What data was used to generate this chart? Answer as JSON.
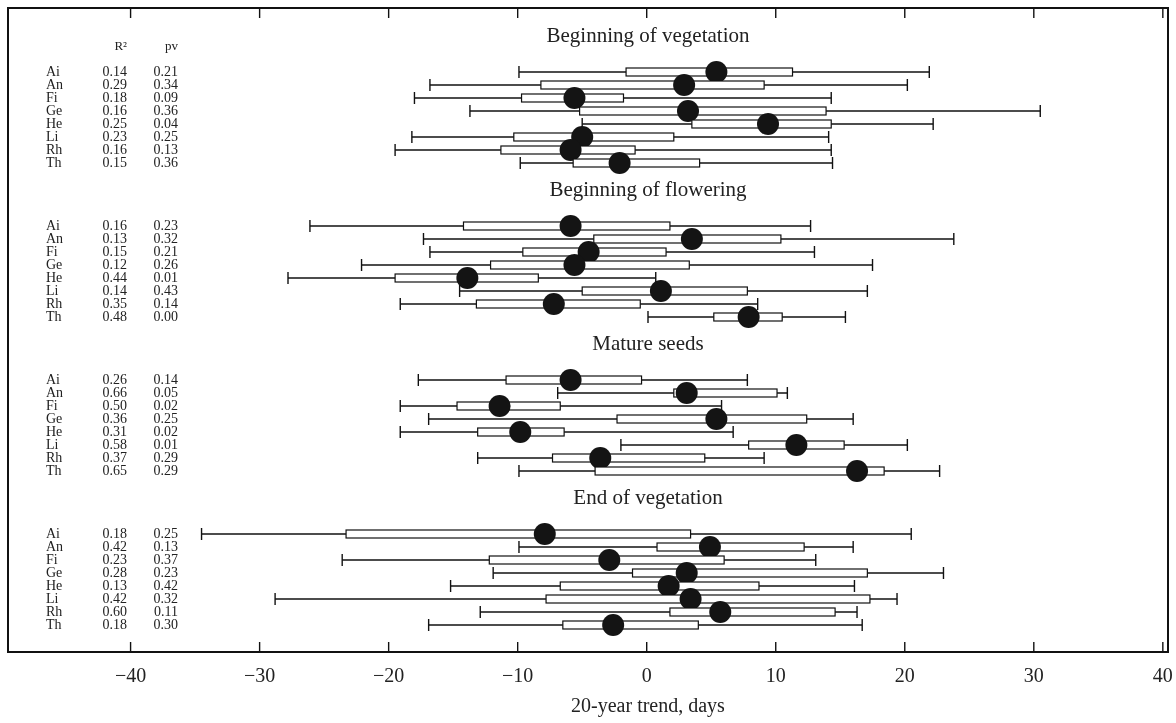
{
  "chart_data": [
    {
      "type": "box",
      "orientation": "horizontal",
      "title": "Beginning of vegetation",
      "categories": [
        "Ai",
        "An",
        "Fi",
        "Ge",
        "He",
        "Li",
        "Rh",
        "Th"
      ],
      "xlim": [
        -49.5,
        40.4
      ],
      "xticks": [
        -40,
        -30,
        -20,
        -10,
        0,
        10,
        20,
        30,
        40
      ],
      "tick_labels": "y",
      "annotations": [
        "R²",
        "pv",
        "0.14",
        "0.21",
        "0.29",
        "0.34",
        "0.18",
        "0.09",
        "0.16",
        "0.36",
        "0.25",
        "0.04",
        "0.23",
        "0.25",
        "0.16",
        "0.13",
        "0.15",
        "0.36"
      ],
      "boxes": [
        {
          "low": -9.9,
          "q1": -1.6,
          "median": 5.4,
          "q3": 11.3,
          "high": 21.9
        },
        {
          "low": -16.8,
          "q1": -8.2,
          "median": 2.9,
          "q3": 9.1,
          "high": 20.2
        },
        {
          "low": -18.0,
          "q1": -9.7,
          "median": -5.6,
          "q3": -1.8,
          "high": 14.3
        },
        {
          "low": -13.7,
          "q1": -5.2,
          "median": 3.2,
          "q3": 13.9,
          "high": 30.5
        },
        {
          "low": -5.0,
          "q1": 3.5,
          "median": 9.4,
          "q3": 14.3,
          "high": 22.2
        },
        {
          "low": -18.2,
          "q1": -10.3,
          "median": -5.0,
          "q3": 2.1,
          "high": 14.1
        },
        {
          "low": -19.5,
          "q1": -11.3,
          "median": -5.9,
          "q3": -0.9,
          "high": 14.3
        },
        {
          "low": -9.8,
          "q1": -5.7,
          "median": -2.1,
          "q3": 4.1,
          "high": 14.4
        }
      ]
    },
    {
      "type": "box",
      "orientation": "horizontal",
      "title": "Beginning of flowering",
      "categories": [
        "Ai",
        "An",
        "Fi",
        "Ge",
        "He",
        "Li",
        "Rh",
        "Th"
      ],
      "xlim": [
        -49.5,
        40.4
      ],
      "tick_labels": "y",
      "annotations": [
        "0.16",
        "0.23",
        "0.13",
        "0.32",
        "0.15",
        "0.21",
        "0.12",
        "0.26",
        "0.44",
        "0.01",
        "0.14",
        "0.43",
        "0.35",
        "0.14",
        "0.48",
        "0.00"
      ],
      "boxes": [
        {
          "low": -26.1,
          "q1": -14.2,
          "median": -5.9,
          "q3": 1.8,
          "high": 12.7
        },
        {
          "low": -17.3,
          "q1": -4.1,
          "median": 3.5,
          "q3": 10.4,
          "high": 23.8
        },
        {
          "low": -16.8,
          "q1": -9.6,
          "median": -4.5,
          "q3": 1.5,
          "high": 13.0
        },
        {
          "low": -22.1,
          "q1": -12.1,
          "median": -5.6,
          "q3": 3.3,
          "high": 17.5
        },
        {
          "low": -27.8,
          "q1": -19.5,
          "median": -13.9,
          "q3": -8.4,
          "high": 0.7
        },
        {
          "low": -14.5,
          "q1": -5.0,
          "median": 1.1,
          "q3": 7.8,
          "high": 17.1
        },
        {
          "low": -19.1,
          "q1": -13.2,
          "median": -7.2,
          "q3": -0.5,
          "high": 8.6
        },
        {
          "low": 0.1,
          "q1": 5.2,
          "median": 7.9,
          "q3": 10.5,
          "high": 15.4
        }
      ]
    },
    {
      "type": "box",
      "orientation": "horizontal",
      "title": "Mature seeds",
      "categories": [
        "Ai",
        "An",
        "Fi",
        "Ge",
        "He",
        "Li",
        "Rh",
        "Th"
      ],
      "xlim": [
        -49.5,
        40.4
      ],
      "tick_labels": "y",
      "annotations": [
        "0.26",
        "0.14",
        "0.66",
        "0.05",
        "0.50",
        "0.02",
        "0.36",
        "0.25",
        "0.31",
        "0.02",
        "0.58",
        "0.01",
        "0.37",
        "0.29",
        "0.65",
        "0.29"
      ],
      "boxes": [
        {
          "low": -17.7,
          "q1": -10.9,
          "median": -5.9,
          "q3": -0.4,
          "high": 7.8
        },
        {
          "low": -6.9,
          "q1": 2.1,
          "median": 3.1,
          "q3": 10.1,
          "high": 10.9
        },
        {
          "low": -19.1,
          "q1": -14.7,
          "median": -11.4,
          "q3": -6.7,
          "high": 5.8
        },
        {
          "low": -16.9,
          "q1": -2.3,
          "median": 5.4,
          "q3": 12.4,
          "high": 16.0
        },
        {
          "low": -19.1,
          "q1": -13.1,
          "median": -9.8,
          "q3": -6.4,
          "high": 6.7
        },
        {
          "low": -2.0,
          "q1": 7.9,
          "median": 11.6,
          "q3": 15.3,
          "high": 20.2
        },
        {
          "low": -13.1,
          "q1": -7.3,
          "median": -3.6,
          "q3": 4.5,
          "high": 9.1
        },
        {
          "low": -9.9,
          "q1": -4.0,
          "median": 16.3,
          "q3": 18.4,
          "high": 22.7
        }
      ]
    },
    {
      "type": "box",
      "orientation": "horizontal",
      "title": "End of vegetation",
      "categories": [
        "Ai",
        "An",
        "Fi",
        "Ge",
        "He",
        "Li",
        "Rh",
        "Th"
      ],
      "xlim": [
        -49.5,
        40.4
      ],
      "xticks": [
        -40,
        -30,
        -20,
        -10,
        0,
        10,
        20,
        30,
        40
      ],
      "xlabel": "20-year trend, days",
      "annotations": [
        "0.18",
        "0.25",
        "0.42",
        "0.13",
        "0.23",
        "0.37",
        "0.28",
        "0.23",
        "0.13",
        "0.42",
        "0.42",
        "0.32",
        "0.60",
        "0.11",
        "0.18",
        "0.30"
      ],
      "boxes": [
        {
          "low": -34.5,
          "q1": -23.3,
          "median": -7.9,
          "q3": 3.4,
          "high": 20.5
        },
        {
          "low": -9.9,
          "q1": 0.8,
          "median": 4.9,
          "q3": 12.2,
          "high": 16.0
        },
        {
          "low": -23.6,
          "q1": -12.2,
          "median": -2.9,
          "q3": 6.0,
          "high": 13.1
        },
        {
          "low": -11.9,
          "q1": -1.1,
          "median": 3.1,
          "q3": 17.1,
          "high": 23.0
        },
        {
          "low": -15.2,
          "q1": -6.7,
          "median": 1.7,
          "q3": 8.7,
          "high": 16.1
        },
        {
          "low": -28.8,
          "q1": -7.8,
          "median": 3.4,
          "q3": 17.3,
          "high": 19.4
        },
        {
          "low": -12.9,
          "q1": 1.8,
          "median": 5.7,
          "q3": 14.6,
          "high": 16.3
        },
        {
          "low": -16.9,
          "q1": -6.5,
          "median": -2.6,
          "q3": 4.0,
          "high": 16.7
        }
      ]
    }
  ]
}
